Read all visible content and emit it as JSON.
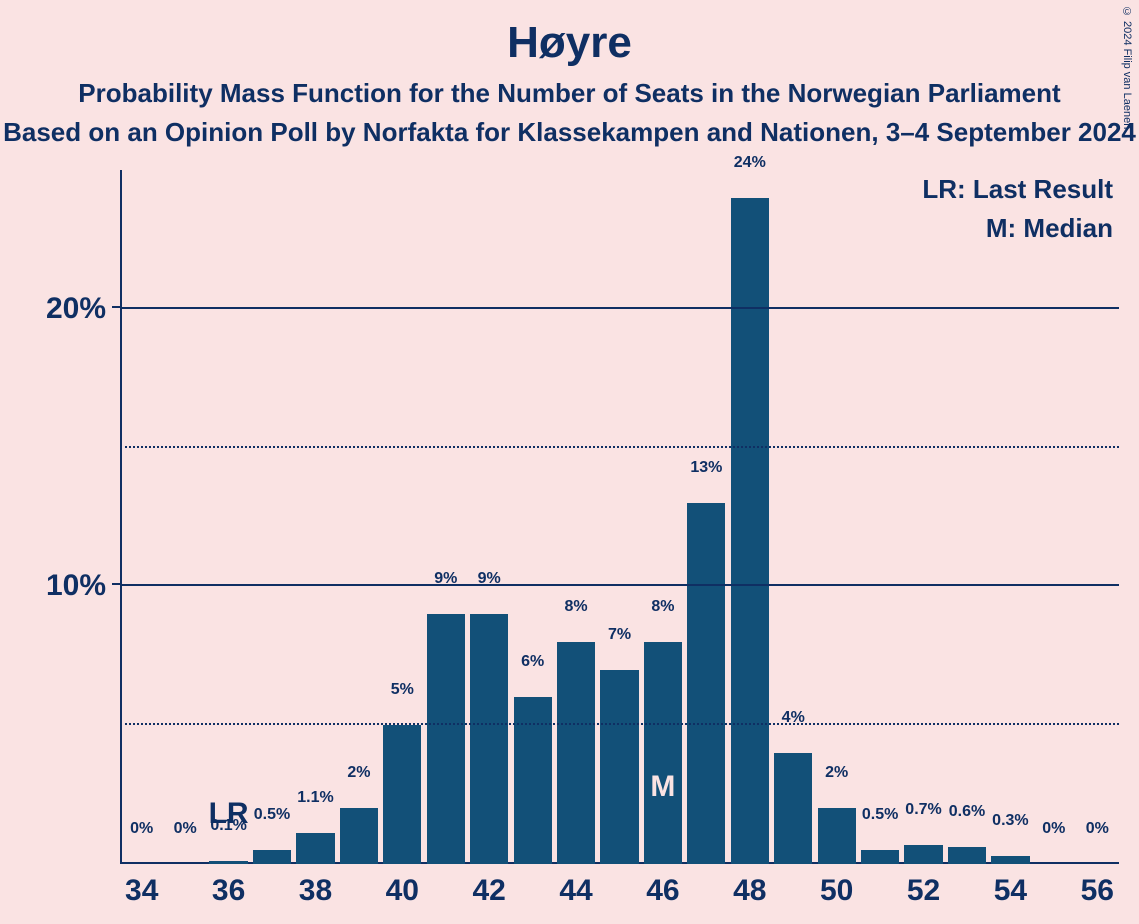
{
  "title": "Høyre",
  "subtitle1": "Probability Mass Function for the Number of Seats in the Norwegian Parliament",
  "subtitle2": "Based on an Opinion Poll by Norfakta for Klassekampen and Nationen, 3–4 September 2024",
  "copyright": "© 2024 Filip van Laenen",
  "legend": {
    "lr": "LR: Last Result",
    "m": "M: Median"
  },
  "annotations": {
    "lr_short": "LR",
    "m_short": "M"
  },
  "chart": {
    "type": "bar",
    "background_color": "#fae3e3",
    "bar_color": "#125078",
    "axis_color": "#0f2f63",
    "text_color": "#0f2f63",
    "title_fontsize": 44,
    "subtitle_fontsize": 26,
    "axis_label_fontsize": 30,
    "bar_label_fontsize": 16,
    "bar_width_ratio": 0.88,
    "x_range": [
      33.5,
      56.5
    ],
    "y_range": [
      0,
      25
    ],
    "y_ticks_major": [
      10,
      20
    ],
    "y_ticks_minor": [
      5,
      15
    ],
    "x_ticks": [
      34,
      36,
      38,
      40,
      42,
      44,
      46,
      48,
      50,
      52,
      54,
      56
    ],
    "lr_x": 36,
    "median_x": 46,
    "bars": [
      {
        "x": 34,
        "v": 0,
        "label": "0%"
      },
      {
        "x": 35,
        "v": 0,
        "label": "0%"
      },
      {
        "x": 36,
        "v": 0.1,
        "label": "0.1%"
      },
      {
        "x": 37,
        "v": 0.5,
        "label": "0.5%"
      },
      {
        "x": 38,
        "v": 1.1,
        "label": "1.1%"
      },
      {
        "x": 39,
        "v": 2,
        "label": "2%"
      },
      {
        "x": 40,
        "v": 5,
        "label": "5%"
      },
      {
        "x": 41,
        "v": 9,
        "label": "9%"
      },
      {
        "x": 42,
        "v": 9,
        "label": "9%"
      },
      {
        "x": 43,
        "v": 6,
        "label": "6%"
      },
      {
        "x": 44,
        "v": 8,
        "label": "8%"
      },
      {
        "x": 45,
        "v": 7,
        "label": "7%"
      },
      {
        "x": 46,
        "v": 8,
        "label": "8%"
      },
      {
        "x": 47,
        "v": 13,
        "label": "13%"
      },
      {
        "x": 48,
        "v": 24,
        "label": "24%"
      },
      {
        "x": 49,
        "v": 4,
        "label": "4%"
      },
      {
        "x": 50,
        "v": 2,
        "label": "2%"
      },
      {
        "x": 51,
        "v": 0.5,
        "label": "0.5%"
      },
      {
        "x": 52,
        "v": 0.7,
        "label": "0.7%"
      },
      {
        "x": 53,
        "v": 0.6,
        "label": "0.6%"
      },
      {
        "x": 54,
        "v": 0.3,
        "label": "0.3%"
      },
      {
        "x": 55,
        "v": 0,
        "label": "0%"
      },
      {
        "x": 56,
        "v": 0,
        "label": "0%"
      }
    ]
  }
}
